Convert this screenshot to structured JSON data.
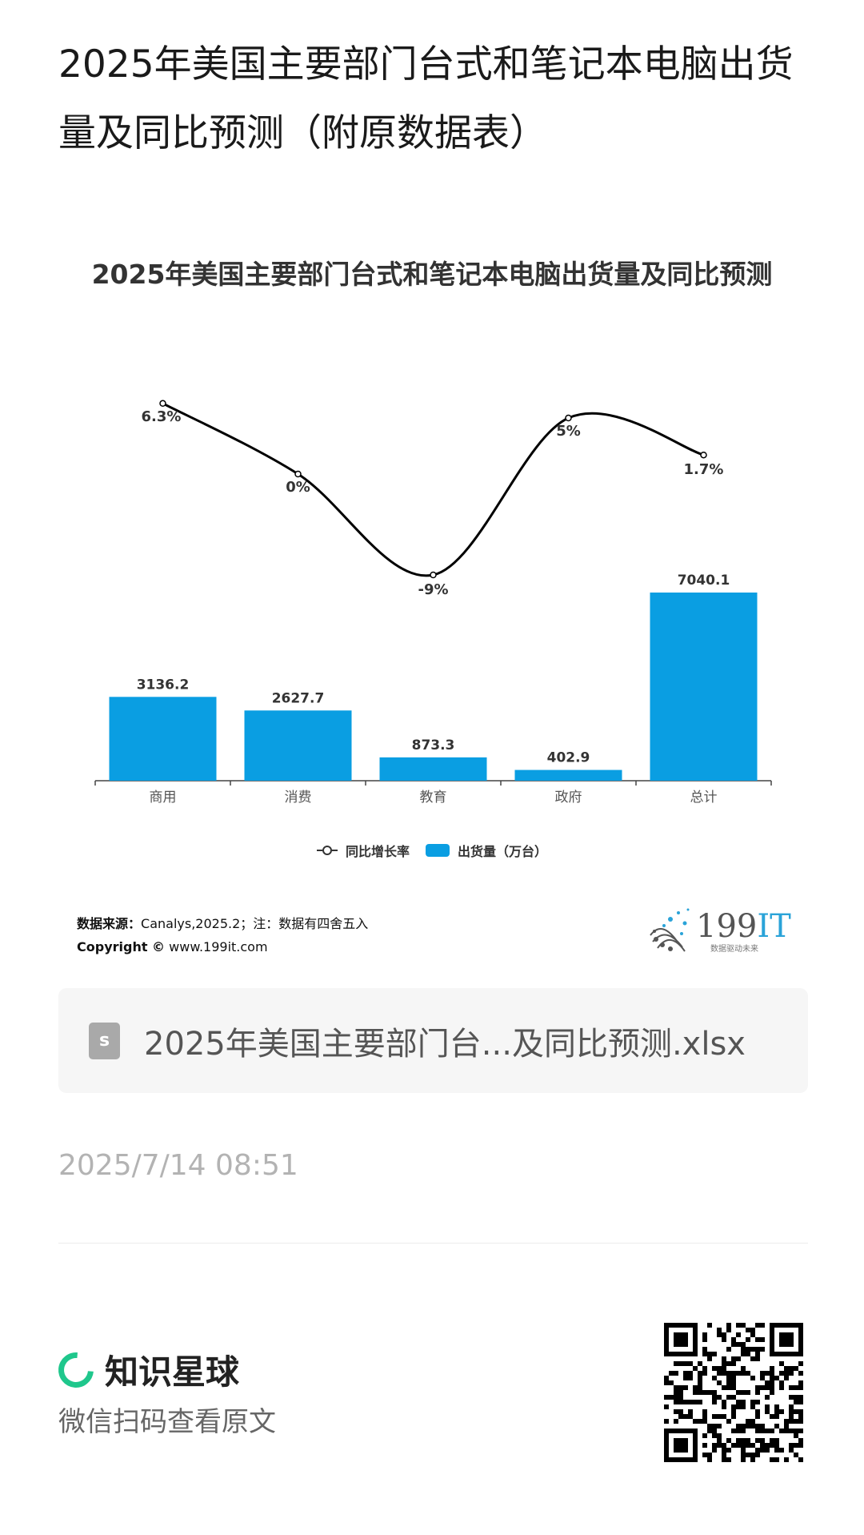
{
  "article": {
    "title": "2025年美国主要部门台式和笔记本电脑出货量及同比预测（附原数据表）"
  },
  "chart_data": {
    "type": "bar+line",
    "title": "2025年美国主要部门台式和笔记本电脑出货量及同比预测",
    "categories": [
      "商用",
      "消费",
      "教育",
      "政府",
      "总计"
    ],
    "series": [
      {
        "name": "出货量（万台）",
        "type": "bar",
        "values": [
          3136.2,
          2627.7,
          873.3,
          402.9,
          7040.1
        ],
        "labels": [
          "3136.2",
          "2627.7",
          "873.3",
          "402.9",
          "7040.1"
        ],
        "color": "#0a9ee2"
      },
      {
        "name": "同比增长率",
        "type": "line",
        "values": [
          6.3,
          0,
          -9,
          5,
          1.7
        ],
        "labels": [
          "6.3%",
          "0%",
          "-9%",
          "5%",
          "1.7%"
        ],
        "color": "#000000"
      }
    ],
    "legend": {
      "position": "bottom",
      "line_label": "同比增长率",
      "bar_label": "出货量（万台）"
    }
  },
  "source": {
    "label": "数据来源：",
    "text": "Canalys,2025.2；注：数据有四舍五入",
    "copyright_label": "Copyright ©",
    "copyright_url": "www.199it.com"
  },
  "logo": {
    "text": "199IT",
    "tagline": "数据驱动未来"
  },
  "file": {
    "icon": "s",
    "name": "2025年美国主要部门台...及同比预测.xlsx"
  },
  "date": "2025/7/14 08:51",
  "footer": {
    "brand": "知识星球",
    "scan_text": "微信扫码查看原文"
  }
}
